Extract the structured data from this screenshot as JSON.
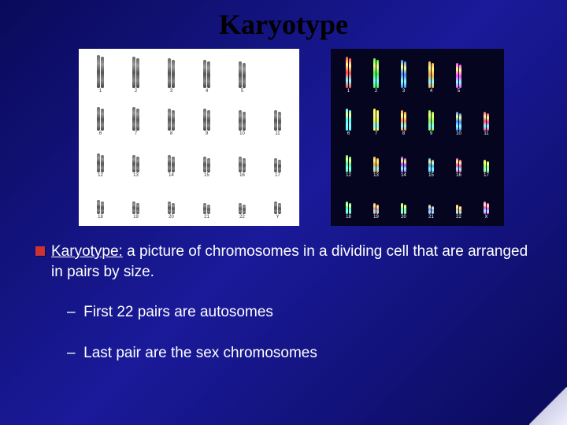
{
  "title": "Karyotype",
  "left_karyotype": {
    "bg": "#ffffff",
    "rows": 4,
    "cols": 6,
    "label_color": "#333333",
    "chrom_color": "linear-gradient(#666, #999, #555, #888, #444)",
    "labels": [
      "1",
      "2",
      "3",
      "4",
      "5",
      "",
      "6",
      "7",
      "8",
      "9",
      "10",
      "11",
      "12",
      "13",
      "14",
      "15",
      "16",
      "17",
      "18",
      "19",
      "20",
      "21",
      "22",
      "Y"
    ],
    "heights": [
      42,
      40,
      38,
      36,
      34,
      0,
      30,
      30,
      28,
      28,
      26,
      26,
      24,
      22,
      22,
      20,
      20,
      18,
      18,
      16,
      16,
      14,
      14,
      16
    ]
  },
  "right_karyotype": {
    "bg": "#050520",
    "rows": 4,
    "cols": 6,
    "label_color": "#ffffff",
    "labels": [
      "1",
      "2",
      "3",
      "4",
      "5",
      "",
      "6",
      "7",
      "8",
      "9",
      "10",
      "11",
      "12",
      "13",
      "14",
      "15",
      "16",
      "17",
      "18",
      "19",
      "20",
      "21",
      "22",
      "X"
    ],
    "heights": [
      40,
      38,
      36,
      34,
      32,
      0,
      28,
      28,
      26,
      26,
      24,
      24,
      22,
      20,
      20,
      18,
      18,
      16,
      16,
      14,
      14,
      12,
      12,
      16
    ],
    "colors": [
      "#ff4444",
      "#44ff44",
      "#4488ff",
      "#ffaa44",
      "#ff44ff",
      "",
      "#44ffff",
      "#ffff44",
      "#ff8844",
      "#88ff44",
      "#4488ff",
      "#ff4488",
      "#44ff88",
      "#ffaa44",
      "#aa44ff",
      "#44aaff",
      "#ff44aa",
      "#aaff44",
      "#44ffaa",
      "#ff8888",
      "#88ff88",
      "#8888ff",
      "#ffaa88",
      "#ff44ff"
    ]
  },
  "definition": {
    "term": "Karyotype:",
    "text": " a picture of chromosomes in a dividing cell that are arranged in pairs by size."
  },
  "bullet_color": "#cc3333",
  "sub_points": [
    "First 22 pairs are autosomes",
    "Last pair are the sex chromosomes"
  ],
  "text_color": "#ffffff",
  "bg_gradient": [
    "#0a0a5a",
    "#1a1a9a",
    "#0a0a5a"
  ],
  "title_fontsize": 36,
  "body_fontsize": 19
}
